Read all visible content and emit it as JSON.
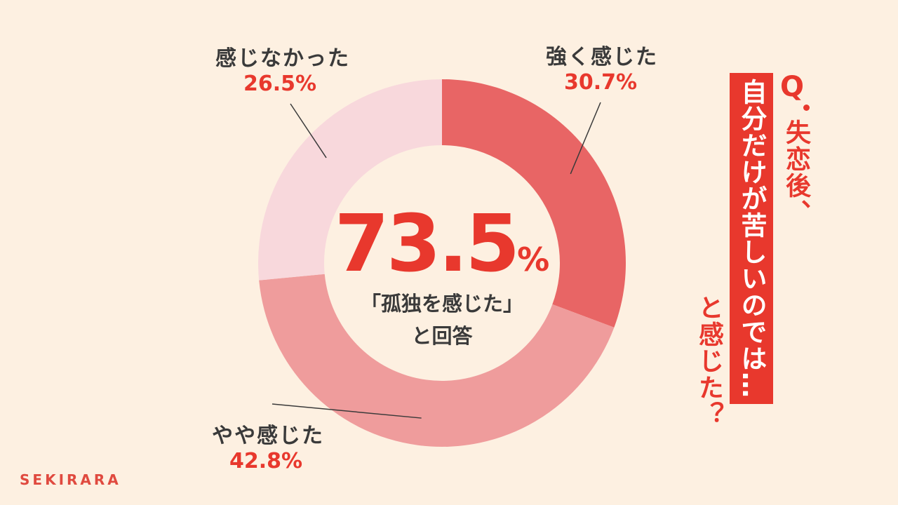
{
  "chart_data": {
    "type": "pie",
    "categories": [
      "強く感じた",
      "やや感じた",
      "感じなかった"
    ],
    "values": [
      30.7,
      42.8,
      26.5
    ],
    "value_labels": [
      "30.7%",
      "42.8%",
      "26.5%"
    ],
    "colors": [
      "#e86565",
      "#ef9c9c",
      "#f8d8dc"
    ],
    "center": {
      "value": "73.5",
      "unit": "%",
      "text_line1": "「孤独を感じた」",
      "text_line2": "と回答"
    }
  },
  "question": {
    "mark": "Q",
    "line1": "失恋後、",
    "line2": "自分だけが苦しいのでは…",
    "line3": "と感じた？"
  },
  "brand": "SEKIRARA"
}
